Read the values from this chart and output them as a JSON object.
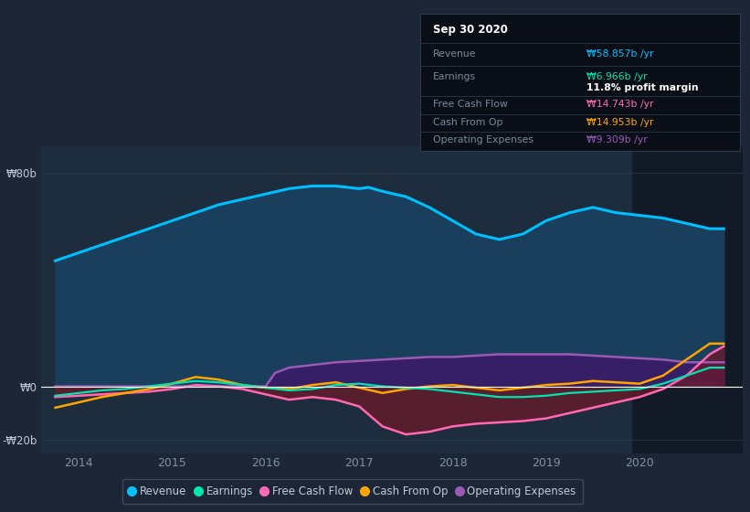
{
  "bg_color": "#1c2636",
  "plot_bg_color": "#1e2d3d",
  "dark_bg_color": "#111a26",
  "text_color": "#8090a0",
  "grid_color": "#2a3a4a",
  "zero_line_color": "#ffffff",
  "title": "Sep 30 2020",
  "tooltip": {
    "Revenue": {
      "value": "₩58.857b /yr",
      "color": "#00bfff"
    },
    "Earnings": {
      "value": "₩6.966b /yr",
      "color": "#00e5b0"
    },
    "profit_margin": "11.8% profit margin",
    "Free Cash Flow": {
      "value": "₩14.743b /yr",
      "color": "#ff69b4"
    },
    "Cash From Op": {
      "value": "₩14.953b /yr",
      "color": "#ffa500"
    },
    "Operating Expenses": {
      "value": "₩9.309b /yr",
      "color": "#9b59b6"
    }
  },
  "xmin": 2013.6,
  "xmax": 2021.1,
  "ymin": -25,
  "ymax": 90,
  "yticks": [
    80,
    0,
    -20
  ],
  "ytick_labels": [
    "₩80b",
    "₩0",
    "-₩20b"
  ],
  "xtick_years": [
    2014,
    2015,
    2016,
    2017,
    2018,
    2019,
    2020
  ],
  "legend_items": [
    {
      "label": "Revenue",
      "color": "#00bfff"
    },
    {
      "label": "Earnings",
      "color": "#00e5b0"
    },
    {
      "label": "Free Cash Flow",
      "color": "#ff69b4"
    },
    {
      "label": "Cash From Op",
      "color": "#ffa500"
    },
    {
      "label": "Operating Expenses",
      "color": "#9b59b6"
    }
  ],
  "highlight_xstart": 2019.92,
  "highlight_xend": 2021.1,
  "revenue": {
    "x": [
      2013.75,
      2014.0,
      2014.25,
      2014.5,
      2014.75,
      2015.0,
      2015.25,
      2015.5,
      2015.75,
      2016.0,
      2016.25,
      2016.5,
      2016.75,
      2017.0,
      2017.1,
      2017.25,
      2017.5,
      2017.75,
      2018.0,
      2018.25,
      2018.5,
      2018.75,
      2019.0,
      2019.25,
      2019.5,
      2019.75,
      2020.0,
      2020.25,
      2020.5,
      2020.75,
      2020.9
    ],
    "y": [
      47,
      50,
      53,
      56,
      59,
      62,
      65,
      68,
      70,
      72,
      74,
      75,
      75,
      74,
      74.5,
      73,
      71,
      67,
      62,
      57,
      55,
      57,
      62,
      65,
      67,
      65,
      64,
      63,
      61,
      59,
      59
    ],
    "color": "#00bfff",
    "fill_color": "#1a3f5c",
    "alpha": 1.0,
    "lw": 2.2
  },
  "earnings": {
    "x": [
      2013.75,
      2014.0,
      2014.25,
      2014.5,
      2014.75,
      2015.0,
      2015.25,
      2015.5,
      2015.75,
      2016.0,
      2016.25,
      2016.5,
      2016.75,
      2017.0,
      2017.25,
      2017.5,
      2017.75,
      2018.0,
      2018.25,
      2018.5,
      2018.75,
      2019.0,
      2019.25,
      2019.5,
      2019.75,
      2020.0,
      2020.25,
      2020.5,
      2020.75,
      2020.9
    ],
    "y": [
      -3.5,
      -2.5,
      -1.5,
      -1,
      0,
      1,
      2,
      1.5,
      0.5,
      -0.5,
      -1.5,
      -1,
      0.5,
      1,
      0,
      -0.5,
      -1,
      -2,
      -3,
      -4,
      -4,
      -3.5,
      -2.5,
      -2,
      -1.5,
      -1,
      1,
      4,
      7,
      7
    ],
    "color": "#00e5b0",
    "lw": 1.6
  },
  "free_cash_flow": {
    "x": [
      2013.75,
      2014.0,
      2014.25,
      2014.5,
      2014.75,
      2015.0,
      2015.25,
      2015.5,
      2015.75,
      2016.0,
      2016.25,
      2016.5,
      2016.75,
      2017.0,
      2017.25,
      2017.5,
      2017.75,
      2018.0,
      2018.25,
      2018.5,
      2018.75,
      2019.0,
      2019.25,
      2019.5,
      2019.75,
      2020.0,
      2020.25,
      2020.5,
      2020.75,
      2020.9
    ],
    "y": [
      -4,
      -3.5,
      -3,
      -2.5,
      -2,
      -1,
      0.5,
      0,
      -1,
      -3,
      -5,
      -4,
      -5,
      -7.5,
      -15,
      -18,
      -17,
      -15,
      -14,
      -13.5,
      -13,
      -12,
      -10,
      -8,
      -6,
      -4,
      -1,
      4,
      12,
      15
    ],
    "color": "#ff69b4",
    "fill_color": "#6b1a2a",
    "alpha": 0.75,
    "lw": 1.8
  },
  "cash_from_op": {
    "x": [
      2013.75,
      2014.0,
      2014.25,
      2014.5,
      2014.75,
      2015.0,
      2015.25,
      2015.5,
      2015.75,
      2016.0,
      2016.25,
      2016.5,
      2016.75,
      2017.0,
      2017.25,
      2017.5,
      2017.75,
      2018.0,
      2018.25,
      2018.5,
      2018.75,
      2019.0,
      2019.25,
      2019.5,
      2019.75,
      2020.0,
      2020.25,
      2020.5,
      2020.75,
      2020.9
    ],
    "y": [
      -8,
      -6,
      -4,
      -2.5,
      -1,
      1,
      3.5,
      2.5,
      0.5,
      -0.5,
      -1,
      0.5,
      1.5,
      -0.5,
      -2.5,
      -1,
      0,
      0.5,
      -0.5,
      -1.5,
      -0.5,
      0.5,
      1,
      2,
      1.5,
      1,
      4,
      10,
      16,
      16
    ],
    "color": "#ffa500",
    "lw": 1.8
  },
  "operating_expenses": {
    "x": [
      2013.75,
      2014.0,
      2014.25,
      2014.5,
      2014.75,
      2015.0,
      2015.25,
      2015.5,
      2015.75,
      2016.0,
      2016.1,
      2016.25,
      2016.5,
      2016.75,
      2017.0,
      2017.25,
      2017.5,
      2017.75,
      2018.0,
      2018.25,
      2018.5,
      2018.75,
      2019.0,
      2019.25,
      2019.5,
      2019.75,
      2020.0,
      2020.25,
      2020.5,
      2020.75,
      2020.9
    ],
    "y": [
      0,
      0,
      0,
      0,
      0,
      0,
      0,
      0,
      0,
      0,
      5,
      7,
      8,
      9,
      9.5,
      10,
      10.5,
      11,
      11,
      11.5,
      12,
      12,
      12,
      12,
      11.5,
      11,
      10.5,
      10,
      9,
      9,
      9
    ],
    "color": "#9b59b6",
    "fill_color": "#3d1a6b",
    "alpha": 0.85,
    "lw": 1.8
  }
}
